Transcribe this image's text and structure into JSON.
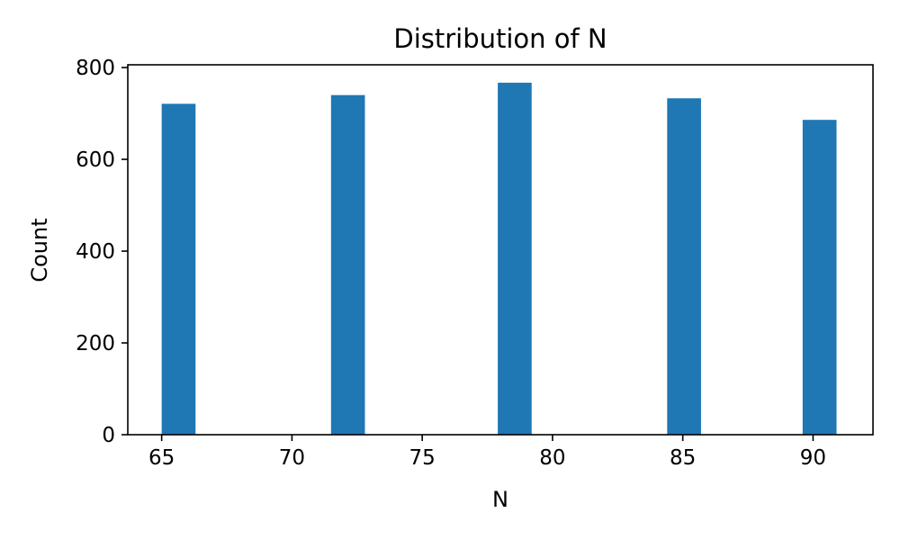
{
  "chart_data": {
    "type": "bar",
    "title": "Distribution of N",
    "xlabel": "N",
    "ylabel": "Count",
    "xlim": [
      63.7,
      92.3
    ],
    "ylim": [
      0,
      806
    ],
    "xticks": [
      65,
      70,
      75,
      80,
      85,
      90
    ],
    "yticks": [
      0,
      200,
      400,
      600,
      800
    ],
    "grid": false,
    "bar_color": "#1f77b4",
    "bins": [
      {
        "x0": 65.0,
        "x1": 66.3,
        "value": 721
      },
      {
        "x0": 71.5,
        "x1": 72.8,
        "value": 740
      },
      {
        "x0": 77.9,
        "x1": 79.2,
        "value": 767
      },
      {
        "x0": 84.4,
        "x1": 85.7,
        "value": 733
      },
      {
        "x0": 89.6,
        "x1": 90.9,
        "value": 686
      }
    ]
  }
}
